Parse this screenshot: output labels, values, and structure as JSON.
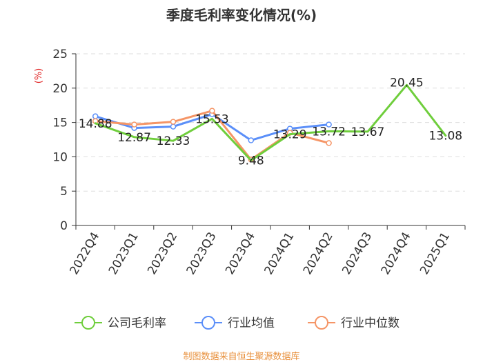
{
  "chart_data": {
    "type": "line",
    "title": "季度毛利率变化情况(%)",
    "ylabel": "(%)",
    "categories": [
      "2022Q4",
      "2023Q1",
      "2023Q2",
      "2023Q3",
      "2023Q4",
      "2024Q1",
      "2024Q2",
      "2024Q3",
      "2024Q4",
      "2025Q1"
    ],
    "ylim": [
      0,
      25
    ],
    "yticks": [
      0,
      5,
      10,
      15,
      20,
      25
    ],
    "grid": true,
    "legend_position": "bottom",
    "series": [
      {
        "name": "公司毛利率",
        "color": "#6fce3c",
        "values": [
          14.88,
          12.87,
          12.33,
          15.53,
          9.48,
          13.29,
          13.72,
          13.67,
          20.45,
          13.08
        ],
        "labels": [
          "14.88",
          "12.87",
          "12.33",
          "15.53",
          "9.48",
          "13.29",
          "13.72",
          "13.67",
          "20.45",
          "13.08"
        ]
      },
      {
        "name": "行业均值",
        "color": "#5b8ff9",
        "values": [
          15.9,
          14.2,
          14.4,
          16.2,
          12.4,
          14.1,
          14.7,
          null,
          null,
          null
        ]
      },
      {
        "name": "行业中位数",
        "color": "#f59566",
        "values": [
          15.2,
          14.7,
          15.1,
          16.7,
          9.6,
          13.5,
          12.0,
          null,
          null,
          null
        ]
      }
    ]
  },
  "source_text": "制图数据来自恒生聚源数据库",
  "colors": {
    "unit": "#e02020",
    "source": "#e8903c",
    "axis": "#333333",
    "grid": "#dddddd"
  }
}
